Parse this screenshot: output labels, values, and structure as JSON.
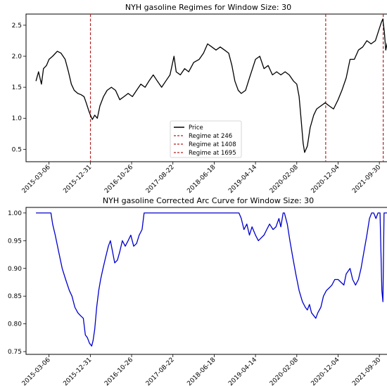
{
  "chart_data": [
    {
      "type": "line",
      "title": "NYH gasoline Regimes for Window Size: 30",
      "xlabel": "",
      "ylabel": "",
      "x_tick_labels": [
        "2015-03-06",
        "2015-12-31",
        "2016-10-26",
        "2017-08-22",
        "2018-06-18",
        "2019-04-14",
        "2020-02-08",
        "2020-12-04",
        "2021-09-30"
      ],
      "x_range": [
        "2014-09-20",
        "2021-12-20"
      ],
      "ylim": [
        0.3,
        2.68
      ],
      "y_ticks": [
        0.5,
        1.0,
        1.5,
        2.0,
        2.5
      ],
      "y_tick_labels": [
        "0.5",
        "1.0",
        "1.5",
        "2.0",
        "2.5"
      ],
      "legend_position": "bottom-center",
      "series": [
        {
          "name": "Price",
          "color": "#000000",
          "points": [
            [
              "2014-12-01",
              1.6
            ],
            [
              "2014-12-20",
              1.75
            ],
            [
              "2015-01-10",
              1.55
            ],
            [
              "2015-01-25",
              1.8
            ],
            [
              "2015-02-15",
              1.85
            ],
            [
              "2015-03-06",
              1.95
            ],
            [
              "2015-04-01",
              2.0
            ],
            [
              "2015-05-05",
              2.08
            ],
            [
              "2015-06-01",
              2.05
            ],
            [
              "2015-07-01",
              1.95
            ],
            [
              "2015-07-25",
              1.75
            ],
            [
              "2015-08-15",
              1.55
            ],
            [
              "2015-09-05",
              1.45
            ],
            [
              "2015-10-01",
              1.4
            ],
            [
              "2015-10-25",
              1.38
            ],
            [
              "2015-11-15",
              1.35
            ],
            [
              "2015-12-01",
              1.25
            ],
            [
              "2015-12-20",
              1.12
            ],
            [
              "2016-01-01",
              1.05
            ],
            [
              "2016-01-15",
              0.98
            ],
            [
              "2016-02-01",
              1.05
            ],
            [
              "2016-02-20",
              1.0
            ],
            [
              "2016-03-10",
              1.2
            ],
            [
              "2016-04-05",
              1.35
            ],
            [
              "2016-05-01",
              1.45
            ],
            [
              "2016-06-01",
              1.5
            ],
            [
              "2016-07-01",
              1.45
            ],
            [
              "2016-08-01",
              1.3
            ],
            [
              "2016-09-01",
              1.35
            ],
            [
              "2016-10-01",
              1.4
            ],
            [
              "2016-11-01",
              1.35
            ],
            [
              "2016-12-01",
              1.45
            ],
            [
              "2017-01-01",
              1.55
            ],
            [
              "2017-02-01",
              1.5
            ],
            [
              "2017-03-01",
              1.6
            ],
            [
              "2017-04-01",
              1.7
            ],
            [
              "2017-05-01",
              1.6
            ],
            [
              "2017-06-01",
              1.5
            ],
            [
              "2017-07-01",
              1.6
            ],
            [
              "2017-08-01",
              1.7
            ],
            [
              "2017-08-30",
              2.0
            ],
            [
              "2017-09-15",
              1.75
            ],
            [
              "2017-10-15",
              1.7
            ],
            [
              "2017-11-15",
              1.8
            ],
            [
              "2017-12-15",
              1.75
            ],
            [
              "2018-01-20",
              1.9
            ],
            [
              "2018-03-01",
              1.95
            ],
            [
              "2018-04-01",
              2.05
            ],
            [
              "2018-05-01",
              2.2
            ],
            [
              "2018-06-01",
              2.15
            ],
            [
              "2018-07-01",
              2.1
            ],
            [
              "2018-08-01",
              2.15
            ],
            [
              "2018-09-01",
              2.1
            ],
            [
              "2018-10-01",
              2.05
            ],
            [
              "2018-10-25",
              1.85
            ],
            [
              "2018-11-15",
              1.6
            ],
            [
              "2018-12-10",
              1.45
            ],
            [
              "2019-01-01",
              1.4
            ],
            [
              "2019-02-01",
              1.45
            ],
            [
              "2019-03-01",
              1.65
            ],
            [
              "2019-04-14",
              1.95
            ],
            [
              "2019-05-15",
              2.0
            ],
            [
              "2019-06-15",
              1.8
            ],
            [
              "2019-07-15",
              1.85
            ],
            [
              "2019-08-15",
              1.7
            ],
            [
              "2019-09-15",
              1.75
            ],
            [
              "2019-10-15",
              1.7
            ],
            [
              "2019-11-15",
              1.75
            ],
            [
              "2019-12-15",
              1.7
            ],
            [
              "2020-01-15",
              1.6
            ],
            [
              "2020-02-08",
              1.55
            ],
            [
              "2020-02-25",
              1.35
            ],
            [
              "2020-03-10",
              1.0
            ],
            [
              "2020-03-25",
              0.6
            ],
            [
              "2020-04-05",
              0.45
            ],
            [
              "2020-04-25",
              0.55
            ],
            [
              "2020-05-15",
              0.85
            ],
            [
              "2020-06-10",
              1.05
            ],
            [
              "2020-07-01",
              1.15
            ],
            [
              "2020-08-01",
              1.2
            ],
            [
              "2020-09-01",
              1.25
            ],
            [
              "2020-10-01",
              1.2
            ],
            [
              "2020-11-01",
              1.15
            ],
            [
              "2020-12-04",
              1.3
            ],
            [
              "2021-01-01",
              1.45
            ],
            [
              "2021-02-01",
              1.65
            ],
            [
              "2021-03-01",
              1.95
            ],
            [
              "2021-04-01",
              1.95
            ],
            [
              "2021-05-01",
              2.1
            ],
            [
              "2021-06-01",
              2.15
            ],
            [
              "2021-07-01",
              2.25
            ],
            [
              "2021-08-01",
              2.2
            ],
            [
              "2021-09-01",
              2.25
            ],
            [
              "2021-09-30",
              2.45
            ],
            [
              "2021-10-15",
              2.55
            ],
            [
              "2021-10-25",
              2.6
            ],
            [
              "2021-11-05",
              2.4
            ],
            [
              "2021-11-15",
              2.1
            ],
            [
              "2021-11-25",
              2.2
            ],
            [
              "2021-12-05",
              2.3
            ]
          ]
        }
      ],
      "regimes": [
        {
          "label": "Regime at 246",
          "date": "2016-01-01",
          "color": "#b22222"
        },
        {
          "label": "Regime at 1408",
          "date": "2020-09-05",
          "color": "#b22222"
        },
        {
          "label": "Regime at 1695",
          "date": "2021-10-28",
          "color": "#b22222"
        }
      ]
    },
    {
      "type": "line",
      "title": "NYH gasoline Corrected Arc Curve for Window Size: 30",
      "xlabel": "",
      "ylabel": "",
      "x_tick_labels": [
        "2015-03-06",
        "2015-12-31",
        "2016-10-26",
        "2017-08-22",
        "2018-06-18",
        "2019-04-14",
        "2020-02-08",
        "2020-12-04",
        "2021-09-30"
      ],
      "x_range": [
        "2014-09-20",
        "2021-12-20"
      ],
      "ylim": [
        0.745,
        1.01
      ],
      "y_ticks": [
        0.75,
        0.8,
        0.85,
        0.9,
        0.95,
        1.0
      ],
      "y_tick_labels": [
        "0.75",
        "0.80",
        "0.85",
        "0.90",
        "0.95",
        "1.00"
      ],
      "series": [
        {
          "name": "",
          "color": "#0000cc",
          "points": [
            [
              "2014-12-01",
              1.0
            ],
            [
              "2015-03-20",
              1.0
            ],
            [
              "2015-04-01",
              0.98
            ],
            [
              "2015-04-20",
              0.96
            ],
            [
              "2015-05-15",
              0.93
            ],
            [
              "2015-06-10",
              0.9
            ],
            [
              "2015-07-05",
              0.88
            ],
            [
              "2015-08-01",
              0.86
            ],
            [
              "2015-08-20",
              0.85
            ],
            [
              "2015-09-10",
              0.83
            ],
            [
              "2015-10-01",
              0.82
            ],
            [
              "2015-10-20",
              0.815
            ],
            [
              "2015-11-10",
              0.81
            ],
            [
              "2015-11-25",
              0.78
            ],
            [
              "2015-12-10",
              0.775
            ],
            [
              "2015-12-25",
              0.765
            ],
            [
              "2016-01-10",
              0.76
            ],
            [
              "2016-01-20",
              0.77
            ],
            [
              "2016-02-01",
              0.79
            ],
            [
              "2016-02-15",
              0.83
            ],
            [
              "2016-03-01",
              0.86
            ],
            [
              "2016-03-15",
              0.88
            ],
            [
              "2016-04-01",
              0.9
            ],
            [
              "2016-04-20",
              0.92
            ],
            [
              "2016-05-10",
              0.94
            ],
            [
              "2016-05-25",
              0.95
            ],
            [
              "2016-06-10",
              0.93
            ],
            [
              "2016-06-25",
              0.91
            ],
            [
              "2016-07-15",
              0.915
            ],
            [
              "2016-08-01",
              0.93
            ],
            [
              "2016-08-20",
              0.95
            ],
            [
              "2016-09-10",
              0.94
            ],
            [
              "2016-10-01",
              0.95
            ],
            [
              "2016-10-20",
              0.96
            ],
            [
              "2016-11-10",
              0.94
            ],
            [
              "2016-12-01",
              0.945
            ],
            [
              "2016-12-20",
              0.96
            ],
            [
              "2017-01-10",
              0.97
            ],
            [
              "2017-01-25",
              1.0
            ],
            [
              "2017-02-01",
              1.0
            ],
            [
              "2018-12-15",
              1.0
            ],
            [
              "2019-01-01",
              0.99
            ],
            [
              "2019-01-20",
              0.97
            ],
            [
              "2019-02-10",
              0.98
            ],
            [
              "2019-03-01",
              0.96
            ],
            [
              "2019-03-20",
              0.975
            ],
            [
              "2019-04-14",
              0.96
            ],
            [
              "2019-05-05",
              0.95
            ],
            [
              "2019-05-25",
              0.955
            ],
            [
              "2019-06-15",
              0.96
            ],
            [
              "2019-07-05",
              0.97
            ],
            [
              "2019-07-25",
              0.98
            ],
            [
              "2019-08-20",
              0.97
            ],
            [
              "2019-09-10",
              0.975
            ],
            [
              "2019-10-01",
              0.99
            ],
            [
              "2019-10-15",
              0.975
            ],
            [
              "2019-11-01",
              1.0
            ],
            [
              "2019-11-10",
              1.0
            ],
            [
              "2019-12-01",
              0.98
            ],
            [
              "2019-12-20",
              0.95
            ],
            [
              "2020-01-10",
              0.92
            ],
            [
              "2020-02-01",
              0.89
            ],
            [
              "2020-02-25",
              0.86
            ],
            [
              "2020-03-20",
              0.84
            ],
            [
              "2020-04-10",
              0.83
            ],
            [
              "2020-04-25",
              0.825
            ],
            [
              "2020-05-10",
              0.835
            ],
            [
              "2020-05-25",
              0.82
            ],
            [
              "2020-06-10",
              0.815
            ],
            [
              "2020-06-25",
              0.81
            ],
            [
              "2020-07-10",
              0.82
            ],
            [
              "2020-08-01",
              0.83
            ],
            [
              "2020-08-20",
              0.85
            ],
            [
              "2020-09-10",
              0.86
            ],
            [
              "2020-10-01",
              0.865
            ],
            [
              "2020-10-20",
              0.87
            ],
            [
              "2020-11-10",
              0.88
            ],
            [
              "2020-12-04",
              0.88
            ],
            [
              "2020-12-25",
              0.875
            ],
            [
              "2021-01-15",
              0.87
            ],
            [
              "2021-02-01",
              0.89
            ],
            [
              "2021-03-01",
              0.9
            ],
            [
              "2021-03-20",
              0.88
            ],
            [
              "2021-04-10",
              0.87
            ],
            [
              "2021-05-01",
              0.88
            ],
            [
              "2021-05-20",
              0.9
            ],
            [
              "2021-06-10",
              0.93
            ],
            [
              "2021-07-01",
              0.96
            ],
            [
              "2021-07-20",
              0.99
            ],
            [
              "2021-08-05",
              1.0
            ],
            [
              "2021-08-20",
              1.0
            ],
            [
              "2021-09-05",
              0.99
            ],
            [
              "2021-09-20",
              1.0
            ],
            [
              "2021-10-05",
              1.0
            ],
            [
              "2021-10-18",
              0.86
            ],
            [
              "2021-10-26",
              0.84
            ],
            [
              "2021-11-03",
              1.0
            ],
            [
              "2021-12-05",
              1.0
            ]
          ]
        }
      ]
    }
  ]
}
